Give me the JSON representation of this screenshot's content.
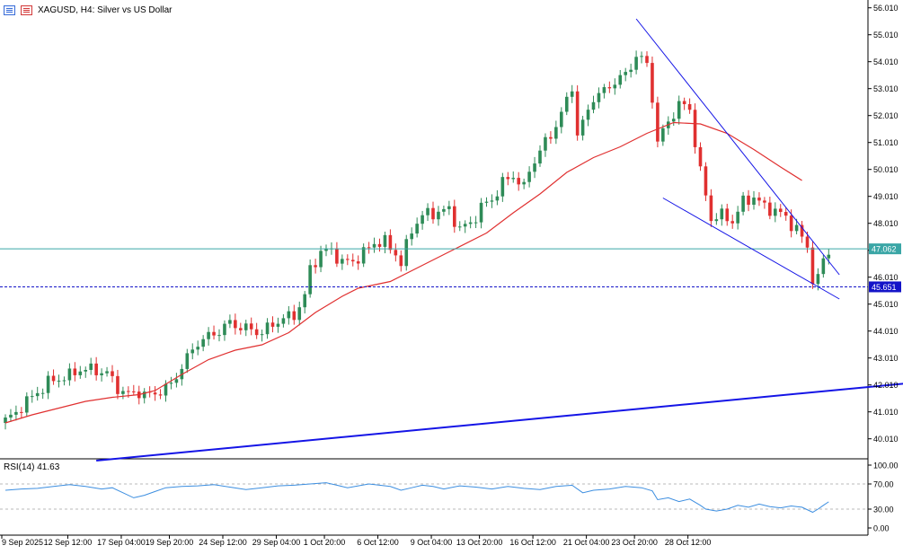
{
  "header": {
    "symbol": "XAGUSD",
    "timeframe": "H4",
    "description": "Silver vs US Dollar",
    "icons": [
      "indicator-list-icon",
      "chart-settings-icon"
    ]
  },
  "colors": {
    "background": "#ffffff",
    "up_candle": "#2e8b57",
    "down_candle": "#e03030",
    "ma": "#e03030",
    "trendline": "#1414e6",
    "price_line": "#3aa6a6",
    "dashed_level": "#1414c8",
    "rsi": "#3c8ee0"
  },
  "price_axis": {
    "ticks": [
      "56.010",
      "55.010",
      "54.010",
      "53.010",
      "52.010",
      "51.010",
      "50.010",
      "49.010",
      "48.010",
      "47.010",
      "46.010",
      "45.010",
      "44.010",
      "43.010",
      "42.010",
      "41.010",
      "40.010"
    ],
    "current_price": "47.062",
    "level_label": "45.651"
  },
  "time_axis": {
    "labels": [
      "9 Sep 2025",
      "12 Sep 12:00",
      "17 Sep 04:00",
      "19 Sep 20:00",
      "24 Sep 12:00",
      "29 Sep 04:00",
      "1 Oct 20:00",
      "6 Oct 12:00",
      "9 Oct 04:00",
      "13 Oct 20:00",
      "16 Oct 12:00",
      "21 Oct 04:00",
      "23 Oct 20:00",
      "28 Oct 12:00"
    ]
  },
  "rsi": {
    "label": "RSI(14) 41.63",
    "ticks": [
      "100.00",
      "70.00",
      "30.00",
      "0.00"
    ]
  },
  "chart_data": {
    "type": "candlestick",
    "symbol": "XAGUSD",
    "timeframe": "H4",
    "description": "Silver vs US Dollar",
    "ylim": [
      39.3,
      56.3
    ],
    "grid": false,
    "x": [
      "9 Sep 2025",
      "12 Sep 12:00",
      "17 Sep 04:00",
      "19 Sep 20:00",
      "24 Sep 12:00",
      "29 Sep 04:00",
      "1 Oct 20:00",
      "6 Oct 12:00",
      "9 Oct 04:00",
      "13 Oct 20:00",
      "16 Oct 12:00",
      "21 Oct 04:00",
      "23 Oct 20:00",
      "28 Oct 12:00"
    ],
    "close_path": [
      [
        0,
        40.7
      ],
      [
        2,
        40.95
      ],
      [
        3,
        41.25
      ],
      [
        5,
        41.55
      ],
      [
        8,
        42.1
      ],
      [
        10,
        42.25
      ],
      [
        12,
        42.35
      ],
      [
        14,
        42.6
      ],
      [
        17,
        42.55
      ],
      [
        19,
        42.45
      ],
      [
        21,
        41.9
      ],
      [
        23,
        41.65
      ],
      [
        25,
        41.75
      ],
      [
        27,
        41.6
      ],
      [
        29,
        41.8
      ],
      [
        31,
        42.0
      ],
      [
        33,
        42.7
      ],
      [
        36,
        43.6
      ],
      [
        39,
        43.9
      ],
      [
        42,
        44.3
      ],
      [
        45,
        44.1
      ],
      [
        48,
        43.95
      ],
      [
        51,
        44.4
      ],
      [
        54,
        44.6
      ],
      [
        56,
        45.3
      ],
      [
        57,
        46.3
      ],
      [
        59,
        46.95
      ],
      [
        61,
        47.0
      ],
      [
        63,
        46.55
      ],
      [
        65,
        46.6
      ],
      [
        67,
        46.9
      ],
      [
        69,
        47.3
      ],
      [
        71,
        47.3
      ],
      [
        73,
        46.9
      ],
      [
        74,
        46.5
      ],
      [
        76,
        47.8
      ],
      [
        78,
        48.3
      ],
      [
        80,
        48.4
      ],
      [
        83,
        48.5
      ],
      [
        85,
        47.8
      ],
      [
        87,
        48.0
      ],
      [
        89,
        48.6
      ],
      [
        91,
        48.9
      ],
      [
        93,
        49.5
      ],
      [
        95,
        49.8
      ],
      [
        97,
        49.3
      ],
      [
        98,
        50.0
      ],
      [
        100,
        50.7
      ],
      [
        102,
        51.3
      ],
      [
        104,
        52.05
      ],
      [
        106,
        53.1
      ],
      [
        107,
        51.3
      ],
      [
        108,
        51.7
      ],
      [
        110,
        52.7
      ],
      [
        112,
        52.9
      ],
      [
        114,
        53.3
      ],
      [
        116,
        53.5
      ],
      [
        118,
        54.25
      ],
      [
        120,
        53.9
      ],
      [
        121,
        52.7
      ],
      [
        122,
        51.0
      ],
      [
        124,
        51.8
      ],
      [
        126,
        52.4
      ],
      [
        128,
        52.3
      ],
      [
        129,
        51.0
      ],
      [
        130,
        49.9
      ],
      [
        132,
        48.2
      ],
      [
        134,
        48.3
      ],
      [
        136,
        48.1
      ],
      [
        138,
        48.8
      ],
      [
        140,
        49.0
      ],
      [
        142,
        48.6
      ],
      [
        144,
        48.5
      ],
      [
        146,
        48.2
      ],
      [
        148,
        47.8
      ],
      [
        150,
        47.1
      ],
      [
        151,
        46.0
      ],
      [
        152,
        45.9
      ],
      [
        153,
        46.7
      ],
      [
        154,
        46.9
      ]
    ],
    "moving_average": [
      [
        0,
        40.6
      ],
      [
        5,
        40.9
      ],
      [
        10,
        41.15
      ],
      [
        15,
        41.4
      ],
      [
        20,
        41.55
      ],
      [
        25,
        41.65
      ],
      [
        28,
        41.8
      ],
      [
        33,
        42.4
      ],
      [
        38,
        42.95
      ],
      [
        43,
        43.3
      ],
      [
        48,
        43.5
      ],
      [
        53,
        43.95
      ],
      [
        58,
        44.7
      ],
      [
        63,
        45.3
      ],
      [
        66,
        45.6
      ],
      [
        72,
        45.85
      ],
      [
        78,
        46.45
      ],
      [
        84,
        47.05
      ],
      [
        90,
        47.65
      ],
      [
        95,
        48.4
      ],
      [
        100,
        49.1
      ],
      [
        105,
        49.9
      ],
      [
        110,
        50.45
      ],
      [
        115,
        50.85
      ],
      [
        120,
        51.35
      ],
      [
        125,
        51.75
      ],
      [
        130,
        51.7
      ],
      [
        135,
        51.35
      ],
      [
        140,
        50.75
      ],
      [
        145,
        50.1
      ],
      [
        149,
        49.6
      ]
    ],
    "levels": [
      {
        "price": 47.062,
        "style": "solid"
      },
      {
        "price": 45.651,
        "style": "dashed"
      }
    ],
    "trendlines": [
      {
        "from": [
          118,
          55.6
        ],
        "to": [
          156,
          46.1
        ],
        "width": 1
      },
      {
        "from": [
          123,
          48.95
        ],
        "to": [
          156,
          45.2
        ],
        "width": 1
      },
      {
        "from": [
          17,
          39.2
        ],
        "to": [
          194,
          42.55
        ],
        "width": 2
      }
    ],
    "rsi": {
      "period": 14,
      "last": 41.63,
      "ylim": [
        0,
        100
      ],
      "levels": [
        70,
        30
      ],
      "values": [
        [
          0,
          60
        ],
        [
          3,
          62
        ],
        [
          6,
          63
        ],
        [
          9,
          66
        ],
        [
          12,
          69
        ],
        [
          15,
          66
        ],
        [
          18,
          62
        ],
        [
          20,
          64
        ],
        [
          22,
          56
        ],
        [
          24,
          48
        ],
        [
          26,
          52
        ],
        [
          28,
          58
        ],
        [
          30,
          64
        ],
        [
          33,
          66
        ],
        [
          36,
          67
        ],
        [
          39,
          69
        ],
        [
          42,
          65
        ],
        [
          45,
          61
        ],
        [
          48,
          64
        ],
        [
          51,
          67
        ],
        [
          54,
          68
        ],
        [
          57,
          70
        ],
        [
          60,
          72
        ],
        [
          62,
          68
        ],
        [
          64,
          64
        ],
        [
          66,
          67
        ],
        [
          68,
          70
        ],
        [
          70,
          68
        ],
        [
          72,
          66
        ],
        [
          74,
          60
        ],
        [
          76,
          64
        ],
        [
          78,
          68
        ],
        [
          80,
          66
        ],
        [
          82,
          62
        ],
        [
          85,
          67
        ],
        [
          88,
          65
        ],
        [
          91,
          62
        ],
        [
          94,
          66
        ],
        [
          97,
          63
        ],
        [
          100,
          61
        ],
        [
          103,
          66
        ],
        [
          106,
          68
        ],
        [
          108,
          56
        ],
        [
          110,
          60
        ],
        [
          113,
          62
        ],
        [
          116,
          66
        ],
        [
          119,
          64
        ],
        [
          121,
          59
        ],
        [
          122,
          45
        ],
        [
          124,
          48
        ],
        [
          126,
          42
        ],
        [
          128,
          46
        ],
        [
          130,
          36
        ],
        [
          131,
          30
        ],
        [
          133,
          27
        ],
        [
          135,
          30
        ],
        [
          137,
          36
        ],
        [
          139,
          33
        ],
        [
          141,
          38
        ],
        [
          143,
          34
        ],
        [
          145,
          32
        ],
        [
          147,
          35
        ],
        [
          149,
          33
        ],
        [
          151,
          25
        ],
        [
          152,
          30
        ],
        [
          153,
          36
        ],
        [
          154,
          41.63
        ]
      ]
    }
  }
}
